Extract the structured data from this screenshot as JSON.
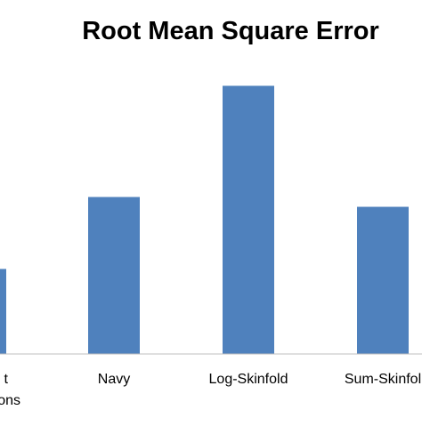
{
  "chart_data": {
    "type": "bar",
    "title": "Root Mean Square Error",
    "categories": [
      "Frame Equations",
      "Navy",
      "Log-Skinfold",
      "Sum-Skinfold"
    ],
    "category_label_lines": [
      [
        "t",
        "ons"
      ],
      [
        "Navy"
      ],
      [
        "Log-Skinfold"
      ],
      [
        "Sum-Skinfol"
      ]
    ],
    "values": [
      1.3,
      2.4,
      4.1,
      2.25
    ],
    "ylim": [
      0,
      4.8
    ],
    "grid": false,
    "legend": "none",
    "colors": {
      "bar": "#4f81bd",
      "axis": "#bfbfbf"
    }
  }
}
